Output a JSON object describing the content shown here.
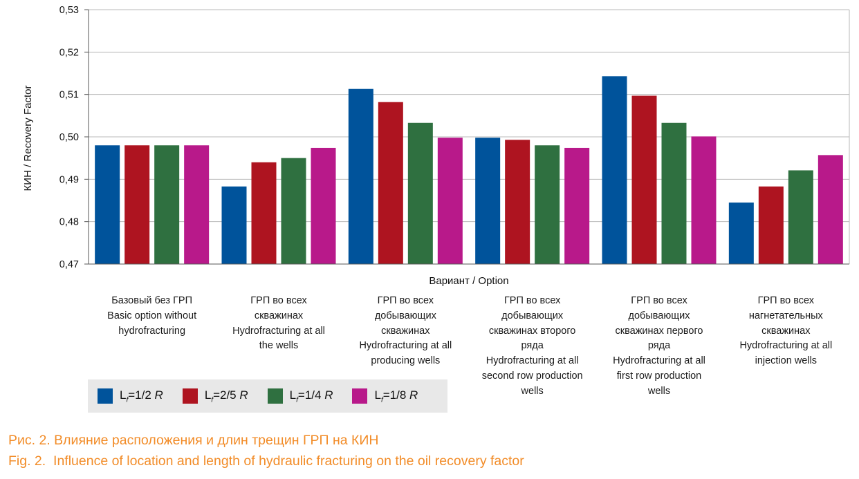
{
  "chart_data": {
    "type": "bar",
    "title": "",
    "xlabel": "Вариант / Option",
    "ylabel": "КИН / Recovery Factor",
    "ylim": [
      0.47,
      0.53
    ],
    "yticks": [
      0.47,
      0.48,
      0.49,
      0.5,
      0.51,
      0.52,
      0.53
    ],
    "ytick_labels": [
      "0,47",
      "0,48",
      "0,49",
      "0,50",
      "0,51",
      "0,52",
      "0,53"
    ],
    "grid": true,
    "categories": [
      [
        "Базовый без ГРП",
        "Basic option without",
        "hydrofracturing"
      ],
      [
        "ГРП во всех",
        "скважинах",
        "Hydrofracturing at all",
        "the wells"
      ],
      [
        "ГРП во всех",
        "добывающих",
        "скважинах",
        "Hydrofracturing at all",
        "producing wells"
      ],
      [
        "ГРП во всех",
        "добывающих",
        "скважинах второго",
        "ряда",
        "Hydrofracturing at all",
        "second row production",
        "wells"
      ],
      [
        "ГРП во всех",
        "добывающих",
        "скважинах первого",
        "ряда",
        "Hydrofracturing at all",
        "first row production",
        "wells"
      ],
      [
        "ГРП во всех",
        "нагнетательных",
        "скважинах",
        "Hydrofracturing at all",
        "injection wells"
      ]
    ],
    "series": [
      {
        "name": "Lf=1/2 R",
        "label_main": "L",
        "label_sub": "f",
        "label_eq": "=1/2 ",
        "label_r": "R",
        "color": "#00539b",
        "values": [
          0.498,
          0.4883,
          0.5113,
          0.4998,
          0.5143,
          0.4845
        ]
      },
      {
        "name": "Lf=2/5 R",
        "label_main": "L",
        "label_sub": "f",
        "label_eq": "=2/5 ",
        "label_r": "R",
        "color": "#ae1420",
        "values": [
          0.498,
          0.494,
          0.5082,
          0.4993,
          0.5097,
          0.4883
        ]
      },
      {
        "name": "Lf=1/4 R",
        "label_main": "L",
        "label_sub": "f",
        "label_eq": "=1/4 ",
        "label_r": "R",
        "color": "#2f7040",
        "values": [
          0.498,
          0.495,
          0.5033,
          0.498,
          0.5033,
          0.4921
        ]
      },
      {
        "name": "Lf=1/8 R",
        "label_main": "L",
        "label_sub": "f",
        "label_eq": "=1/8 ",
        "label_r": "R",
        "color": "#b8198a",
        "values": [
          0.498,
          0.4974,
          0.4998,
          0.4974,
          0.5001,
          0.4957
        ]
      }
    ],
    "legend_position": "bottom-left"
  },
  "caption": {
    "ru_label": "Рис. 2.",
    "ru_text": " Влияние расположения и длин трещин ГРП на КИН",
    "en_label": "Fig. 2.",
    "en_text": "  Influence of location and length of hydraulic fracturing on the oil recovery factor"
  },
  "colors": {
    "grid": "#b8b8b8",
    "axis": "#555555",
    "caption": "#f28c28",
    "legend_bg": "#e8e8e8"
  }
}
